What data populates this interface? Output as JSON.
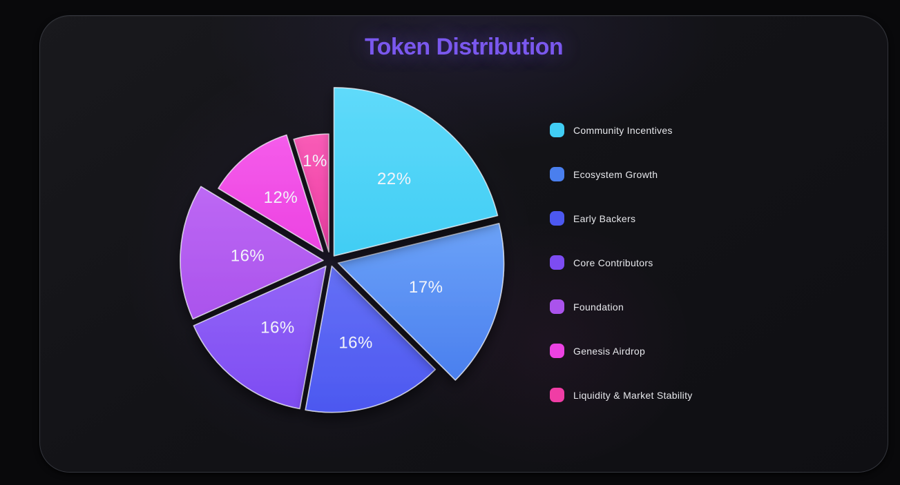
{
  "page": {
    "background": "#09090b"
  },
  "card": {
    "background": "#141418",
    "border_color": "#34363d"
  },
  "chart_data": {
    "type": "pie",
    "title": "Token Distribution",
    "title_color": "#7a58ee",
    "unit": "%",
    "start_angle_deg": 0,
    "direction": "clockwise",
    "legend_position": "right",
    "label_color": "#f2f4fa",
    "slices": [
      {
        "label": "Community Incentives",
        "value": 22,
        "display": "22%",
        "color": "#41cdf4",
        "color_light": "#5fdafa"
      },
      {
        "label": "Ecosystem Growth",
        "value": 17,
        "display": "17%",
        "color": "#4a7fee",
        "color_light": "#6ba2f8"
      },
      {
        "label": "Early Backers",
        "value": 16,
        "display": "16%",
        "color": "#4c58f0",
        "color_light": "#6570f6"
      },
      {
        "label": "Core Contributors",
        "value": 16,
        "display": "16%",
        "color": "#7d4cf2",
        "color_light": "#9465f7"
      },
      {
        "label": "Foundation",
        "value": 16,
        "display": "16%",
        "color": "#aa53ec",
        "color_light": "#bd68f4"
      },
      {
        "label": "Genesis Airdrop",
        "value": 12,
        "display": "12%",
        "color": "#ec42e2",
        "color_light": "#f55cea"
      },
      {
        "label": "Liquidity & Market Stability",
        "value": 1,
        "display": "1%",
        "color": "#f03da5",
        "color_light": "#f85cb6"
      }
    ]
  }
}
